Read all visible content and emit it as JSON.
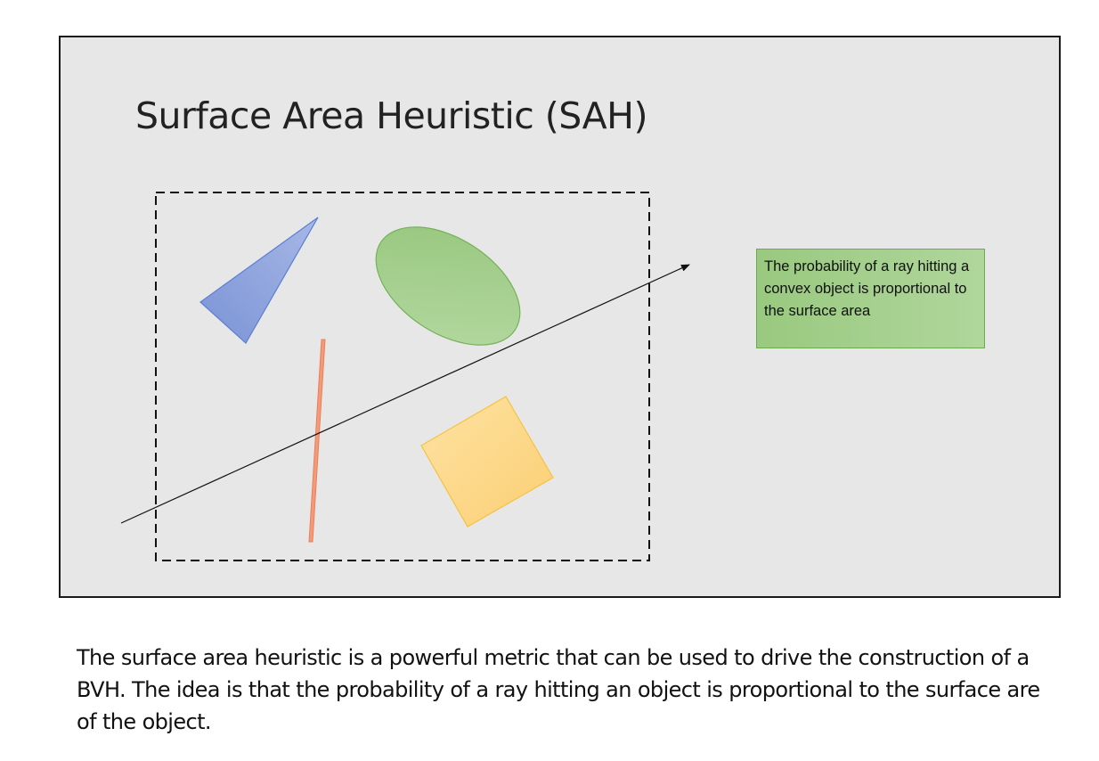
{
  "slide": {
    "title": "Surface Area Heuristic (SAH)",
    "callout_text": "The probability of a ray hitting a convex object is proportional to the surface area"
  },
  "shapes": {
    "triangle_color": "#8fa3dd",
    "ellipse_color": "#a6cf8e",
    "bar_color": "#f49a78",
    "square_color": "#fdd587"
  },
  "caption": "The surface area heuristic is a powerful metric that can be used to drive the construction of a BVH. The idea is that the probability of a ray hitting an object is proportional to the surface are of the object."
}
